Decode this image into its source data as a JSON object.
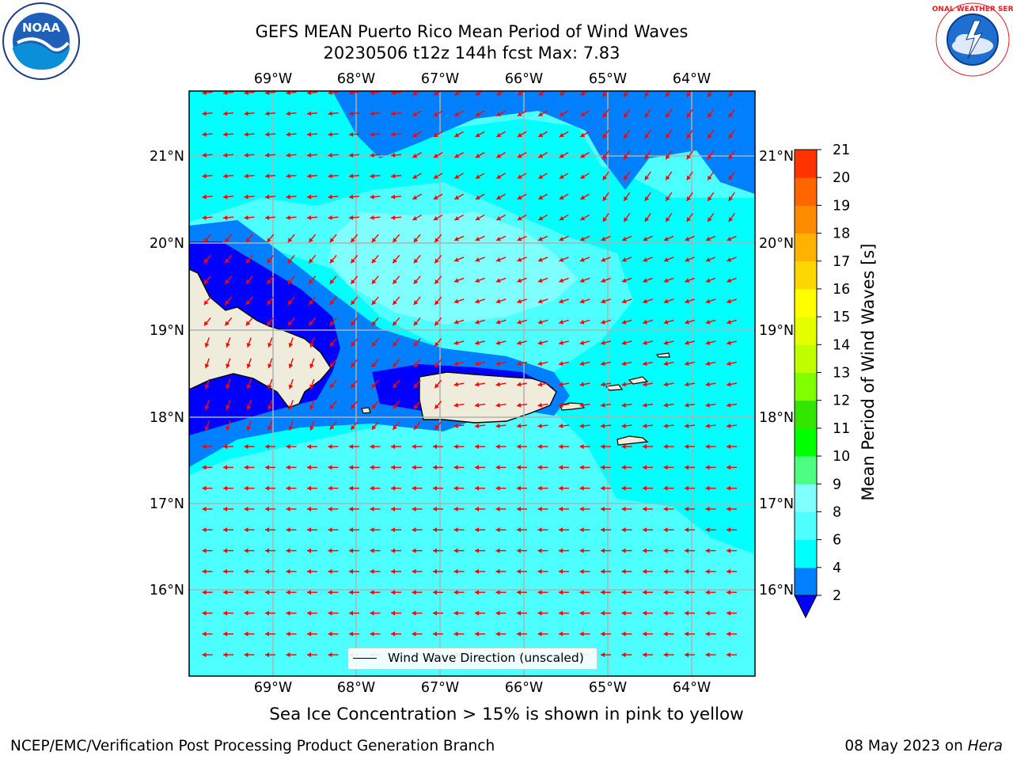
{
  "header": {
    "title_line1": "GEFS MEAN Puerto Rico Mean Period of Wind Waves",
    "title_line2": "20230506 t12z 144h fcst   Max: 7.83"
  },
  "logos": {
    "left_label": "NOAA",
    "right_label": "NATIONAL WEATHER SERVICE"
  },
  "map": {
    "lon_labels": [
      "69°W",
      "68°W",
      "67°W",
      "66°W",
      "65°W",
      "64°W"
    ],
    "lat_labels": [
      "21°N",
      "20°N",
      "19°N",
      "18°N",
      "17°N",
      "16°N"
    ],
    "colors": {
      "ocean_light": "#4dffff",
      "band_pale": "#80ffff",
      "band_cyan": "#00ffff",
      "band_blue": "#0080ff",
      "band_dark": "#0000ff",
      "land": "#f0ecdc",
      "arrow": "#ff0000",
      "grid": "#b0b0b0"
    }
  },
  "legend": {
    "label": "Wind Wave Direction (unscaled)"
  },
  "colorbar": {
    "title": "Mean Period of Wind Waves [s]",
    "tick_labels": [
      "2",
      "4",
      "6",
      "8",
      "9",
      "10",
      "11",
      "12",
      "13",
      "14",
      "15",
      "16",
      "17",
      "18",
      "19",
      "20",
      "21"
    ],
    "colors": [
      "#0080ff",
      "#00ffff",
      "#4dffff",
      "#80ffff",
      "#4dff80",
      "#00ff00",
      "#33e600",
      "#80ff00",
      "#bfff00",
      "#e6ff00",
      "#ffff00",
      "#ffd700",
      "#ffb300",
      "#ff8c00",
      "#ff6600",
      "#ff3300",
      "#ff0000"
    ],
    "extend_color": "#0000ff"
  },
  "caption": "Sea Ice Concentration > 15% is shown in pink to yellow",
  "footer": {
    "left": "NCEP/EMC/Verification Post Processing Product Generation Branch",
    "right_prefix": "08 May 2023 on ",
    "right_machine": "Hera"
  }
}
